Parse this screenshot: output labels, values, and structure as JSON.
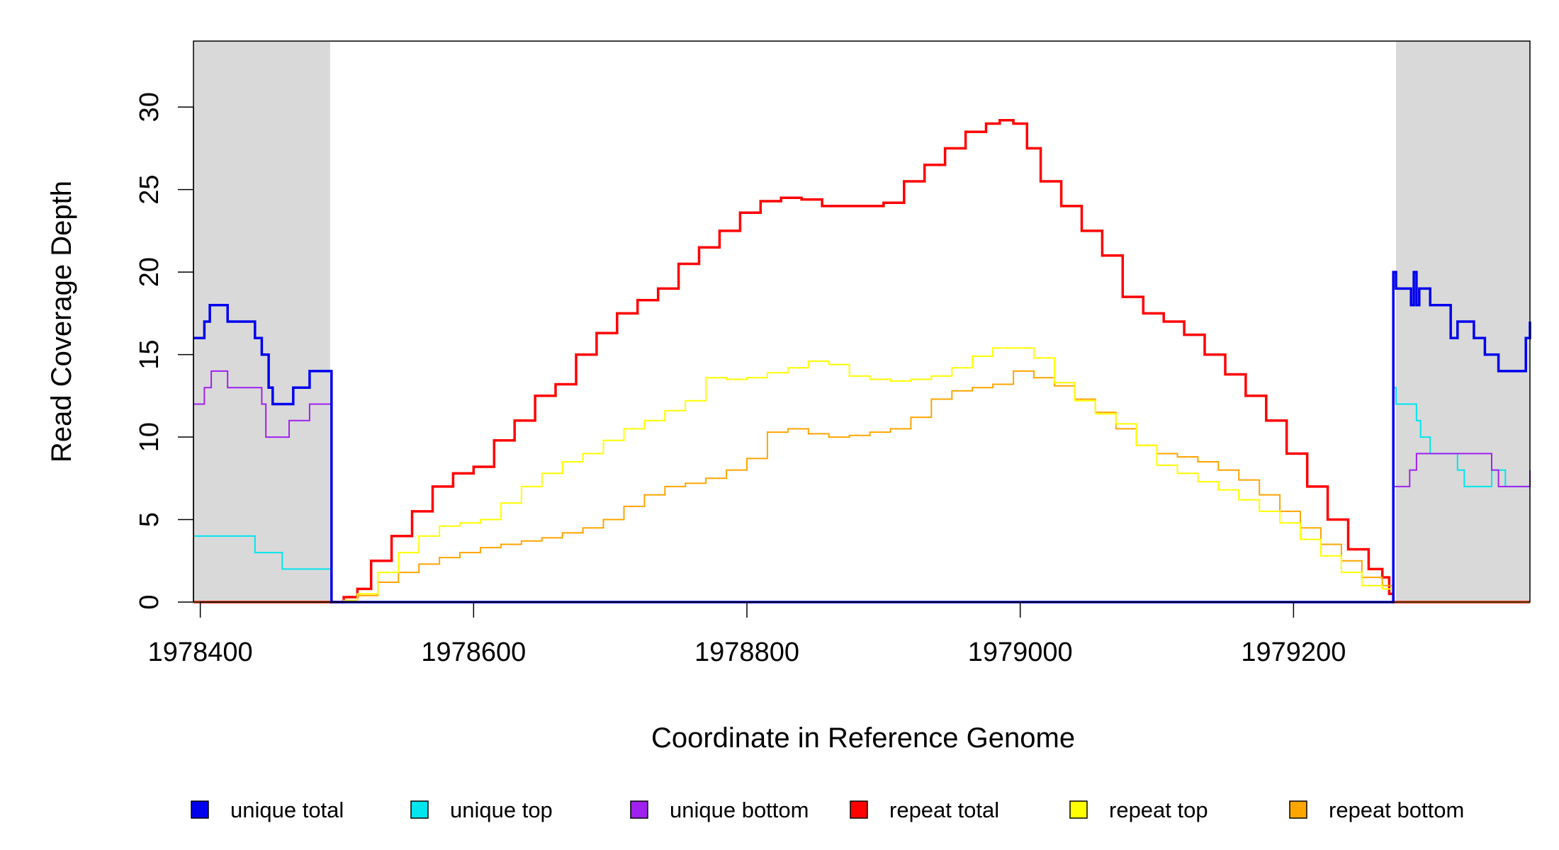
{
  "chart_data": {
    "type": "line",
    "title": "",
    "xlabel": "Coordinate in Reference Genome",
    "ylabel": "Read Coverage Depth",
    "xlim": [
      1978395,
      1979373
    ],
    "ylim": [
      0,
      34
    ],
    "x_ticks": [
      1978400,
      1978600,
      1978800,
      1979000,
      1979200
    ],
    "x_tick_labels": [
      "1978400",
      "1978600",
      "1978800",
      "1979000",
      "1979200"
    ],
    "y_ticks": [
      0,
      5,
      10,
      15,
      20,
      25,
      30
    ],
    "y_tick_labels": [
      "0",
      "5",
      "10",
      "15",
      "20",
      "25",
      "30"
    ],
    "grid": false,
    "legend_position": "bottom",
    "shaded_regions": [
      {
        "x_start": 1978395,
        "x_end": 1978495,
        "color": "#d9d9d9"
      },
      {
        "x_start": 1979275,
        "x_end": 1979373,
        "color": "#d9d9d9"
      }
    ],
    "series": [
      {
        "name": "unique total",
        "color": "#0000ee",
        "stroke": 3.5,
        "x": [
          1978395,
          1978399,
          1978403,
          1978407,
          1978420,
          1978436,
          1978440,
          1978445,
          1978450,
          1978453,
          1978463,
          1978468,
          1978480,
          1978485,
          1978496,
          1978496,
          1979273,
          1979273,
          1979275,
          1979285,
          1979286,
          1979288,
          1979290,
          1979292,
          1979300,
          1979315,
          1979320,
          1979332,
          1979340,
          1979350,
          1979360,
          1979370,
          1979373
        ],
        "y": [
          16,
          16,
          17,
          18,
          17,
          17,
          16,
          15,
          13,
          12,
          12,
          13,
          14,
          14,
          0,
          0,
          0,
          20,
          19,
          19,
          18,
          20,
          18,
          19,
          18,
          16,
          17,
          16,
          15,
          14,
          14,
          16,
          17
        ]
      },
      {
        "name": "unique top",
        "color": "#00e5ee",
        "stroke": 2,
        "x": [
          1978395,
          1978400,
          1978440,
          1978450,
          1978460,
          1978470,
          1978496,
          1978496,
          1979273,
          1979273,
          1979275,
          1979285,
          1979290,
          1979293,
          1979297,
          1979300,
          1979305,
          1979308,
          1979315,
          1979320,
          1979325,
          1979330,
          1979335,
          1979340,
          1979345,
          1979350,
          1979355,
          1979360,
          1979365,
          1979370,
          1979373
        ],
        "y": [
          4,
          4,
          3,
          3,
          2,
          2,
          2,
          0,
          0,
          13,
          12,
          12,
          11,
          10,
          10,
          9,
          9,
          9,
          9,
          8,
          7,
          7,
          7,
          7,
          8,
          8,
          7,
          7,
          7,
          7,
          8
        ]
      },
      {
        "name": "unique bottom",
        "color": "#a020f0",
        "stroke": 2,
        "x": [
          1978395,
          1978403,
          1978408,
          1978415,
          1978420,
          1978425,
          1978445,
          1978448,
          1978456,
          1978465,
          1978477,
          1978480,
          1978496,
          1978496,
          1979273,
          1979273,
          1979285,
          1979290,
          1979300,
          1979310,
          1979320,
          1979335,
          1979345,
          1979350,
          1979360,
          1979370,
          1979373
        ],
        "y": [
          12,
          13,
          14,
          14,
          13,
          13,
          12,
          10,
          10,
          11,
          11,
          12,
          12,
          0,
          0,
          7,
          8,
          9,
          9,
          9,
          9,
          9,
          8,
          7,
          7,
          7,
          8
        ],
        "step": true
      },
      {
        "name": "repeat total",
        "color": "#ff0000",
        "stroke": 3.5,
        "x": [
          1978395,
          1978495,
          1978505,
          1978515,
          1978525,
          1978540,
          1978555,
          1978570,
          1978585,
          1978600,
          1978615,
          1978630,
          1978645,
          1978660,
          1978675,
          1978690,
          1978705,
          1978720,
          1978735,
          1978750,
          1978765,
          1978780,
          1978795,
          1978810,
          1978825,
          1978840,
          1978855,
          1978870,
          1978885,
          1978900,
          1978915,
          1978930,
          1978945,
          1978960,
          1978975,
          1978985,
          1978995,
          1979005,
          1979015,
          1979030,
          1979045,
          1979060,
          1979075,
          1979090,
          1979105,
          1979120,
          1979135,
          1979150,
          1979165,
          1979180,
          1979195,
          1979210,
          1979225,
          1979240,
          1979255,
          1979265,
          1979270,
          1979273,
          1979373
        ],
        "y": [
          0,
          0,
          0.3,
          0.8,
          2.5,
          4.0,
          5.5,
          7.0,
          7.8,
          8.2,
          9.8,
          11.0,
          12.5,
          13.2,
          15.0,
          16.3,
          17.5,
          18.3,
          19.0,
          20.5,
          21.5,
          22.5,
          23.6,
          24.3,
          24.5,
          24.4,
          24.0,
          24.0,
          24.0,
          24.2,
          25.5,
          26.5,
          27.5,
          28.5,
          29.0,
          29.2,
          29.0,
          27.5,
          25.5,
          24.0,
          22.5,
          21.0,
          18.5,
          17.5,
          17.0,
          16.2,
          15.0,
          13.8,
          12.5,
          11.0,
          9.0,
          7.0,
          5.0,
          3.2,
          2.0,
          1.5,
          0.5,
          0,
          0
        ]
      },
      {
        "name": "repeat top",
        "color": "#ffff00",
        "stroke": 2,
        "x": [
          1978395,
          1978495,
          1978505,
          1978515,
          1978530,
          1978545,
          1978560,
          1978575,
          1978590,
          1978605,
          1978620,
          1978635,
          1978650,
          1978665,
          1978680,
          1978695,
          1978710,
          1978725,
          1978740,
          1978755,
          1978770,
          1978785,
          1978800,
          1978815,
          1978830,
          1978845,
          1978860,
          1978875,
          1978890,
          1978905,
          1978920,
          1978935,
          1978950,
          1978965,
          1978980,
          1978995,
          1979010,
          1979025,
          1979040,
          1979055,
          1979070,
          1979085,
          1979100,
          1979115,
          1979130,
          1979145,
          1979160,
          1979175,
          1979190,
          1979205,
          1979220,
          1979235,
          1979250,
          1979265,
          1979273,
          1979373
        ],
        "y": [
          0,
          0,
          0.1,
          0.5,
          1.8,
          3.0,
          4.0,
          4.6,
          4.8,
          5.0,
          6.0,
          7.0,
          7.8,
          8.5,
          9.0,
          9.8,
          10.5,
          11.0,
          11.6,
          12.2,
          13.6,
          13.5,
          13.6,
          13.9,
          14.2,
          14.6,
          14.4,
          13.7,
          13.5,
          13.4,
          13.5,
          13.7,
          14.2,
          14.9,
          15.4,
          15.4,
          14.8,
          13.3,
          12.2,
          11.4,
          10.8,
          9.5,
          8.3,
          7.8,
          7.3,
          6.8,
          6.2,
          5.5,
          4.8,
          3.8,
          2.8,
          1.8,
          1.0,
          0.8,
          0,
          0
        ]
      },
      {
        "name": "repeat bottom",
        "color": "#ffa500",
        "stroke": 2,
        "x": [
          1978395,
          1978495,
          1978505,
          1978515,
          1978530,
          1978545,
          1978560,
          1978575,
          1978590,
          1978605,
          1978620,
          1978635,
          1978650,
          1978665,
          1978680,
          1978695,
          1978710,
          1978725,
          1978740,
          1978755,
          1978770,
          1978785,
          1978800,
          1978815,
          1978830,
          1978845,
          1978860,
          1978875,
          1978890,
          1978905,
          1978920,
          1978935,
          1978950,
          1978965,
          1978980,
          1978995,
          1979010,
          1979025,
          1979040,
          1979055,
          1979070,
          1979085,
          1979100,
          1979115,
          1979130,
          1979145,
          1979160,
          1979175,
          1979190,
          1979205,
          1979220,
          1979235,
          1979250,
          1979265,
          1979273,
          1979373
        ],
        "y": [
          0,
          0,
          0.1,
          0.4,
          1.2,
          1.8,
          2.3,
          2.7,
          3.0,
          3.3,
          3.5,
          3.7,
          3.9,
          4.2,
          4.5,
          5.0,
          5.8,
          6.5,
          7.0,
          7.2,
          7.5,
          8.0,
          8.7,
          10.3,
          10.5,
          10.2,
          10.0,
          10.1,
          10.3,
          10.5,
          11.2,
          12.3,
          12.8,
          13.0,
          13.2,
          14.0,
          13.6,
          13.1,
          12.3,
          11.5,
          10.5,
          9.5,
          9.0,
          8.8,
          8.5,
          8.0,
          7.4,
          6.5,
          5.5,
          4.5,
          3.5,
          2.5,
          1.5,
          1.0,
          0,
          0
        ]
      }
    ],
    "legend": [
      {
        "label": "unique total",
        "color": "#0000ee"
      },
      {
        "label": "unique top",
        "color": "#00e5ee"
      },
      {
        "label": "unique bottom",
        "color": "#a020f0"
      },
      {
        "label": "repeat total",
        "color": "#ff0000"
      },
      {
        "label": "repeat top",
        "color": "#ffff00"
      },
      {
        "label": "repeat bottom",
        "color": "#ffa500"
      }
    ]
  }
}
